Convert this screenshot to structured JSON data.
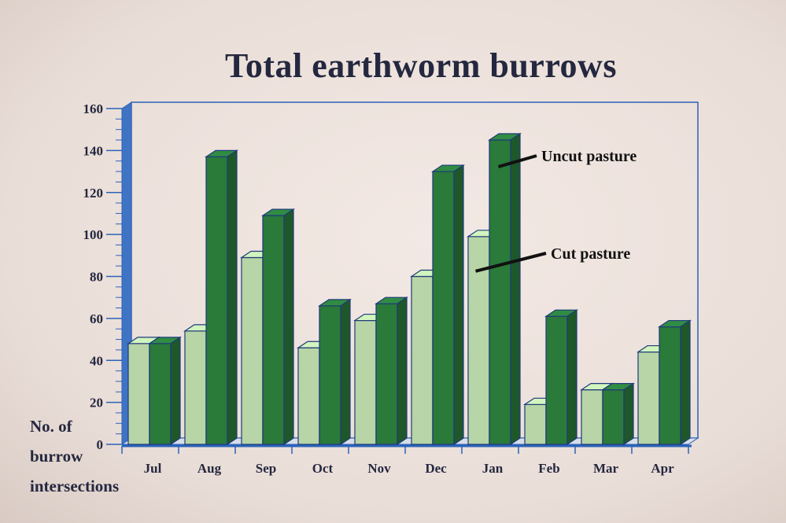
{
  "chart_data": {
    "type": "bar",
    "title": "Total earthworm burrows",
    "ylabel_lines": [
      "No. of",
      "burrow",
      "intersections"
    ],
    "ylim": [
      0,
      160
    ],
    "yticks": [
      0,
      20,
      40,
      60,
      80,
      100,
      120,
      140,
      160
    ],
    "categories": [
      "Jul",
      "Aug",
      "Sep",
      "Oct",
      "Nov",
      "Dec",
      "Jan",
      "Feb",
      "Mar",
      "Apr"
    ],
    "series": [
      {
        "name": "Cut pasture",
        "color": "#b7d5a6",
        "values": [
          48,
          54,
          89,
          46,
          59,
          80,
          99,
          19,
          26,
          44
        ]
      },
      {
        "name": "Uncut pasture",
        "color": "#2a7a3a",
        "values": [
          48,
          137,
          109,
          66,
          67,
          130,
          145,
          61,
          26,
          56
        ]
      }
    ],
    "grid": false,
    "legend": "inline annotations"
  }
}
